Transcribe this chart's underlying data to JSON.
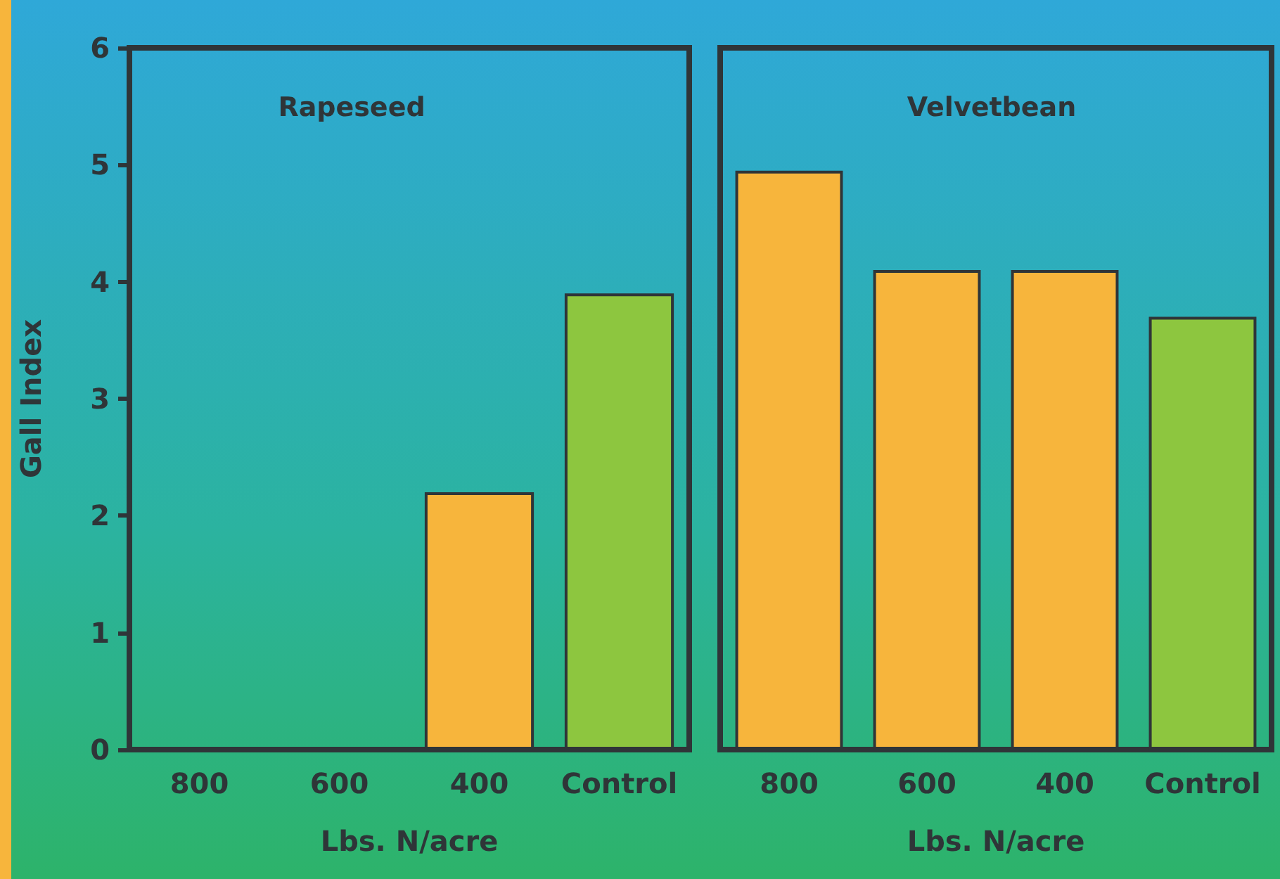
{
  "chart_data": [
    {
      "type": "bar",
      "title": "Rapeseed",
      "xlabel": "Lbs. N/acre",
      "ylabel": "Gall Index",
      "categories": [
        "800",
        "600",
        "400",
        "Control"
      ],
      "values": [
        null,
        null,
        2.2,
        3.9
      ],
      "colors": [
        null,
        null,
        "#f7b53c",
        "#8dc63f"
      ],
      "ylim": [
        0,
        6
      ],
      "yticks": [
        0,
        1,
        2,
        3,
        4,
        5,
        6
      ]
    },
    {
      "type": "bar",
      "title": "Velvetbean",
      "xlabel": "Lbs. N/acre",
      "categories": [
        "800",
        "600",
        "400",
        "Control"
      ],
      "values": [
        4.95,
        4.1,
        4.1,
        3.7
      ],
      "colors": [
        "#f7b53c",
        "#f7b53c",
        "#f7b53c",
        "#8dc63f"
      ],
      "ylim": [
        0,
        6
      ],
      "yticks": [
        0,
        1,
        2,
        3,
        4,
        5,
        6
      ],
      "tick_labels": "x"
    }
  ]
}
